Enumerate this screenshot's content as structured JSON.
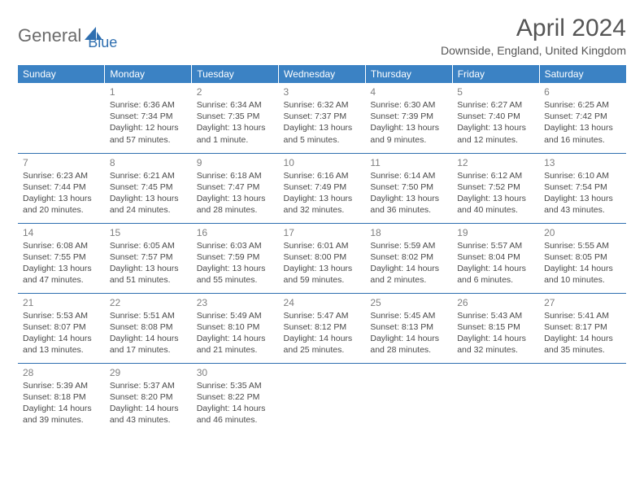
{
  "brand": {
    "part1": "General",
    "part2": "Blue",
    "color_general": "#6b6b6b",
    "color_blue": "#2f6fb0",
    "icon_color": "#2f6fb0"
  },
  "header": {
    "title": "April 2024",
    "location": "Downside, England, United Kingdom"
  },
  "colors": {
    "header_bg": "#3b82c4",
    "header_text": "#ffffff",
    "cell_border": "#2f6fb0",
    "daynum": "#808080",
    "info_text": "#4a4a4a",
    "background": "#ffffff"
  },
  "weekdays": [
    "Sunday",
    "Monday",
    "Tuesday",
    "Wednesday",
    "Thursday",
    "Friday",
    "Saturday"
  ],
  "weeks": [
    [
      null,
      {
        "n": "1",
        "sr": "Sunrise: 6:36 AM",
        "ss": "Sunset: 7:34 PM",
        "dl1": "Daylight: 12 hours",
        "dl2": "and 57 minutes."
      },
      {
        "n": "2",
        "sr": "Sunrise: 6:34 AM",
        "ss": "Sunset: 7:35 PM",
        "dl1": "Daylight: 13 hours",
        "dl2": "and 1 minute."
      },
      {
        "n": "3",
        "sr": "Sunrise: 6:32 AM",
        "ss": "Sunset: 7:37 PM",
        "dl1": "Daylight: 13 hours",
        "dl2": "and 5 minutes."
      },
      {
        "n": "4",
        "sr": "Sunrise: 6:30 AM",
        "ss": "Sunset: 7:39 PM",
        "dl1": "Daylight: 13 hours",
        "dl2": "and 9 minutes."
      },
      {
        "n": "5",
        "sr": "Sunrise: 6:27 AM",
        "ss": "Sunset: 7:40 PM",
        "dl1": "Daylight: 13 hours",
        "dl2": "and 12 minutes."
      },
      {
        "n": "6",
        "sr": "Sunrise: 6:25 AM",
        "ss": "Sunset: 7:42 PM",
        "dl1": "Daylight: 13 hours",
        "dl2": "and 16 minutes."
      }
    ],
    [
      {
        "n": "7",
        "sr": "Sunrise: 6:23 AM",
        "ss": "Sunset: 7:44 PM",
        "dl1": "Daylight: 13 hours",
        "dl2": "and 20 minutes."
      },
      {
        "n": "8",
        "sr": "Sunrise: 6:21 AM",
        "ss": "Sunset: 7:45 PM",
        "dl1": "Daylight: 13 hours",
        "dl2": "and 24 minutes."
      },
      {
        "n": "9",
        "sr": "Sunrise: 6:18 AM",
        "ss": "Sunset: 7:47 PM",
        "dl1": "Daylight: 13 hours",
        "dl2": "and 28 minutes."
      },
      {
        "n": "10",
        "sr": "Sunrise: 6:16 AM",
        "ss": "Sunset: 7:49 PM",
        "dl1": "Daylight: 13 hours",
        "dl2": "and 32 minutes."
      },
      {
        "n": "11",
        "sr": "Sunrise: 6:14 AM",
        "ss": "Sunset: 7:50 PM",
        "dl1": "Daylight: 13 hours",
        "dl2": "and 36 minutes."
      },
      {
        "n": "12",
        "sr": "Sunrise: 6:12 AM",
        "ss": "Sunset: 7:52 PM",
        "dl1": "Daylight: 13 hours",
        "dl2": "and 40 minutes."
      },
      {
        "n": "13",
        "sr": "Sunrise: 6:10 AM",
        "ss": "Sunset: 7:54 PM",
        "dl1": "Daylight: 13 hours",
        "dl2": "and 43 minutes."
      }
    ],
    [
      {
        "n": "14",
        "sr": "Sunrise: 6:08 AM",
        "ss": "Sunset: 7:55 PM",
        "dl1": "Daylight: 13 hours",
        "dl2": "and 47 minutes."
      },
      {
        "n": "15",
        "sr": "Sunrise: 6:05 AM",
        "ss": "Sunset: 7:57 PM",
        "dl1": "Daylight: 13 hours",
        "dl2": "and 51 minutes."
      },
      {
        "n": "16",
        "sr": "Sunrise: 6:03 AM",
        "ss": "Sunset: 7:59 PM",
        "dl1": "Daylight: 13 hours",
        "dl2": "and 55 minutes."
      },
      {
        "n": "17",
        "sr": "Sunrise: 6:01 AM",
        "ss": "Sunset: 8:00 PM",
        "dl1": "Daylight: 13 hours",
        "dl2": "and 59 minutes."
      },
      {
        "n": "18",
        "sr": "Sunrise: 5:59 AM",
        "ss": "Sunset: 8:02 PM",
        "dl1": "Daylight: 14 hours",
        "dl2": "and 2 minutes."
      },
      {
        "n": "19",
        "sr": "Sunrise: 5:57 AM",
        "ss": "Sunset: 8:04 PM",
        "dl1": "Daylight: 14 hours",
        "dl2": "and 6 minutes."
      },
      {
        "n": "20",
        "sr": "Sunrise: 5:55 AM",
        "ss": "Sunset: 8:05 PM",
        "dl1": "Daylight: 14 hours",
        "dl2": "and 10 minutes."
      }
    ],
    [
      {
        "n": "21",
        "sr": "Sunrise: 5:53 AM",
        "ss": "Sunset: 8:07 PM",
        "dl1": "Daylight: 14 hours",
        "dl2": "and 13 minutes."
      },
      {
        "n": "22",
        "sr": "Sunrise: 5:51 AM",
        "ss": "Sunset: 8:08 PM",
        "dl1": "Daylight: 14 hours",
        "dl2": "and 17 minutes."
      },
      {
        "n": "23",
        "sr": "Sunrise: 5:49 AM",
        "ss": "Sunset: 8:10 PM",
        "dl1": "Daylight: 14 hours",
        "dl2": "and 21 minutes."
      },
      {
        "n": "24",
        "sr": "Sunrise: 5:47 AM",
        "ss": "Sunset: 8:12 PM",
        "dl1": "Daylight: 14 hours",
        "dl2": "and 25 minutes."
      },
      {
        "n": "25",
        "sr": "Sunrise: 5:45 AM",
        "ss": "Sunset: 8:13 PM",
        "dl1": "Daylight: 14 hours",
        "dl2": "and 28 minutes."
      },
      {
        "n": "26",
        "sr": "Sunrise: 5:43 AM",
        "ss": "Sunset: 8:15 PM",
        "dl1": "Daylight: 14 hours",
        "dl2": "and 32 minutes."
      },
      {
        "n": "27",
        "sr": "Sunrise: 5:41 AM",
        "ss": "Sunset: 8:17 PM",
        "dl1": "Daylight: 14 hours",
        "dl2": "and 35 minutes."
      }
    ],
    [
      {
        "n": "28",
        "sr": "Sunrise: 5:39 AM",
        "ss": "Sunset: 8:18 PM",
        "dl1": "Daylight: 14 hours",
        "dl2": "and 39 minutes."
      },
      {
        "n": "29",
        "sr": "Sunrise: 5:37 AM",
        "ss": "Sunset: 8:20 PM",
        "dl1": "Daylight: 14 hours",
        "dl2": "and 43 minutes."
      },
      {
        "n": "30",
        "sr": "Sunrise: 5:35 AM",
        "ss": "Sunset: 8:22 PM",
        "dl1": "Daylight: 14 hours",
        "dl2": "and 46 minutes."
      },
      null,
      null,
      null,
      null
    ]
  ]
}
